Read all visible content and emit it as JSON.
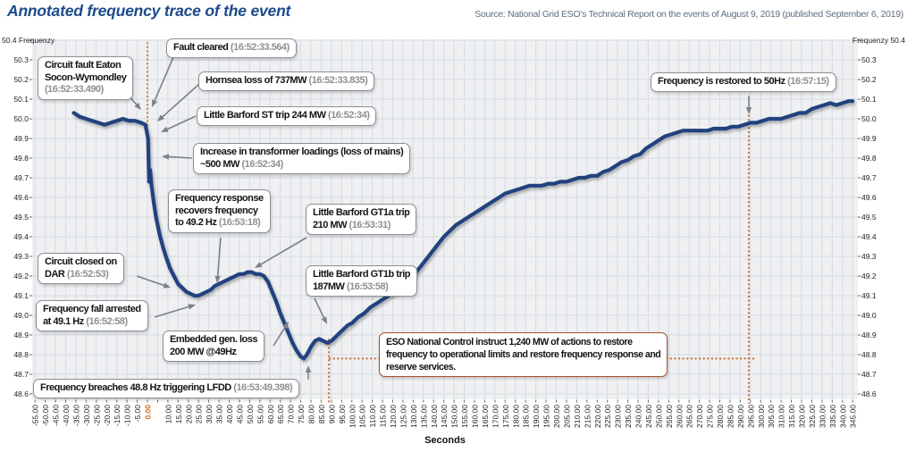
{
  "page": {
    "title": "Annotated frequency trace of the event",
    "source": "Source: National Grid ESO’s Technical Report on the events of August 9, 2019 (published September 6, 2019)"
  },
  "chart_data": {
    "type": "line",
    "title": "Annotated frequency trace of the event",
    "xlabel": "Seconds",
    "ylabel": "Frequenzy",
    "xlim": [
      -55,
      345
    ],
    "ylim": [
      48.6,
      50.4
    ],
    "x_tick_step": 5,
    "x_missing_tick_labels": [
      5
    ],
    "x_highlight_tick": 0,
    "y_tick_step": 0.1,
    "grid": true,
    "colors": {
      "trace": "#20427f",
      "grid": "#d8dbe0",
      "plot_bg": "#eef0f2",
      "arrow": "#7d8187",
      "event_line": "#c8813f",
      "action_line": "#c96b2c",
      "x_highlight": "#cf6a1f",
      "tick_text": "#222222"
    },
    "series": [
      {
        "name": "frequency",
        "color": "#20427f",
        "points": [
          [
            -36,
            50.03
          ],
          [
            -33,
            50.01
          ],
          [
            -30,
            50.0
          ],
          [
            -27,
            49.99
          ],
          [
            -24,
            49.98
          ],
          [
            -21,
            49.97
          ],
          [
            -18,
            49.98
          ],
          [
            -15,
            49.99
          ],
          [
            -12,
            50.0
          ],
          [
            -9,
            49.99
          ],
          [
            -6,
            49.99
          ],
          [
            -3,
            49.98
          ],
          [
            -1,
            49.97
          ],
          [
            0.3,
            49.9
          ],
          [
            0.8,
            49.68
          ],
          [
            1.3,
            49.74
          ],
          [
            2,
            49.66
          ],
          [
            3,
            49.58
          ],
          [
            4,
            49.51
          ],
          [
            5,
            49.46
          ],
          [
            6,
            49.41
          ],
          [
            7.5,
            49.35
          ],
          [
            9,
            49.3
          ],
          [
            11,
            49.24
          ],
          [
            13,
            49.2
          ],
          [
            15,
            49.16
          ],
          [
            17,
            49.14
          ],
          [
            19,
            49.12
          ],
          [
            21,
            49.11
          ],
          [
            23,
            49.1
          ],
          [
            25,
            49.1
          ],
          [
            27,
            49.11
          ],
          [
            29,
            49.12
          ],
          [
            31,
            49.13
          ],
          [
            33,
            49.15
          ],
          [
            35,
            49.16
          ],
          [
            37,
            49.17
          ],
          [
            39,
            49.18
          ],
          [
            41,
            49.19
          ],
          [
            43,
            49.2
          ],
          [
            45,
            49.21
          ],
          [
            47,
            49.21
          ],
          [
            49,
            49.22
          ],
          [
            51,
            49.22
          ],
          [
            53,
            49.21
          ],
          [
            55,
            49.21
          ],
          [
            57,
            49.2
          ],
          [
            59,
            49.17
          ],
          [
            61,
            49.12
          ],
          [
            63,
            49.07
          ],
          [
            65,
            49.01
          ],
          [
            67,
            48.96
          ],
          [
            69,
            48.91
          ],
          [
            71,
            48.86
          ],
          [
            73,
            48.82
          ],
          [
            75,
            48.79
          ],
          [
            76.5,
            48.78
          ],
          [
            78,
            48.8
          ],
          [
            80,
            48.84
          ],
          [
            82,
            48.87
          ],
          [
            84,
            48.88
          ],
          [
            86,
            48.87
          ],
          [
            88,
            48.86
          ],
          [
            90,
            48.87
          ],
          [
            92,
            48.89
          ],
          [
            94,
            48.91
          ],
          [
            96,
            48.93
          ],
          [
            98,
            48.95
          ],
          [
            100,
            48.96
          ],
          [
            103,
            48.99
          ],
          [
            106,
            49.01
          ],
          [
            109,
            49.04
          ],
          [
            112,
            49.06
          ],
          [
            115,
            49.08
          ],
          [
            118,
            49.1
          ],
          [
            121,
            49.12
          ],
          [
            124,
            49.14
          ],
          [
            127,
            49.17
          ],
          [
            130,
            49.2
          ],
          [
            133,
            49.24
          ],
          [
            136,
            49.28
          ],
          [
            139,
            49.32
          ],
          [
            142,
            49.36
          ],
          [
            145,
            49.4
          ],
          [
            148,
            49.43
          ],
          [
            151,
            49.46
          ],
          [
            154,
            49.48
          ],
          [
            157,
            49.5
          ],
          [
            160,
            49.52
          ],
          [
            163,
            49.54
          ],
          [
            166,
            49.56
          ],
          [
            169,
            49.58
          ],
          [
            172,
            49.6
          ],
          [
            175,
            49.62
          ],
          [
            178,
            49.63
          ],
          [
            181,
            49.64
          ],
          [
            184,
            49.65
          ],
          [
            187,
            49.66
          ],
          [
            190,
            49.66
          ],
          [
            193,
            49.66
          ],
          [
            196,
            49.67
          ],
          [
            199,
            49.67
          ],
          [
            202,
            49.68
          ],
          [
            205,
            49.68
          ],
          [
            208,
            49.69
          ],
          [
            211,
            49.7
          ],
          [
            214,
            49.7
          ],
          [
            217,
            49.71
          ],
          [
            220,
            49.71
          ],
          [
            223,
            49.73
          ],
          [
            226,
            49.74
          ],
          [
            229,
            49.76
          ],
          [
            232,
            49.78
          ],
          [
            235,
            49.79
          ],
          [
            238,
            49.81
          ],
          [
            241,
            49.82
          ],
          [
            244,
            49.85
          ],
          [
            247,
            49.87
          ],
          [
            250,
            49.89
          ],
          [
            253,
            49.91
          ],
          [
            256,
            49.92
          ],
          [
            259,
            49.93
          ],
          [
            262,
            49.94
          ],
          [
            265,
            49.94
          ],
          [
            268,
            49.94
          ],
          [
            271,
            49.94
          ],
          [
            274,
            49.94
          ],
          [
            277,
            49.95
          ],
          [
            280,
            49.95
          ],
          [
            283,
            49.95
          ],
          [
            286,
            49.96
          ],
          [
            289,
            49.96
          ],
          [
            292,
            49.97
          ],
          [
            295,
            49.98
          ],
          [
            298,
            49.98
          ],
          [
            301,
            49.99
          ],
          [
            304,
            50.0
          ],
          [
            307,
            50.0
          ],
          [
            310,
            50.0
          ],
          [
            313,
            50.01
          ],
          [
            316,
            50.02
          ],
          [
            319,
            50.03
          ],
          [
            322,
            50.03
          ],
          [
            325,
            50.05
          ],
          [
            328,
            50.06
          ],
          [
            331,
            50.07
          ],
          [
            334,
            50.08
          ],
          [
            337,
            50.07
          ],
          [
            340,
            50.08
          ],
          [
            343,
            50.09
          ],
          [
            345,
            50.09
          ]
        ]
      }
    ],
    "event_lines": [
      {
        "id": "event-start",
        "orient": "v",
        "t": 0,
        "hz_from": 50.39,
        "hz_to": 49.96,
        "color": "#c8813f"
      },
      {
        "id": "actions-start",
        "orient": "v",
        "t": 88.8,
        "hz_from": 48.88,
        "hz_to": 48.55,
        "color": "#c96b2c"
      },
      {
        "id": "actions-span",
        "orient": "h",
        "hz": 48.78,
        "t_from": 88.8,
        "t_to": 297,
        "color": "#c96b2c"
      },
      {
        "id": "actions-end",
        "orient": "v",
        "t": 294.2,
        "hz_from": 50.02,
        "hz_to": 48.55,
        "color": "#c96b2c"
      }
    ],
    "annotations": [
      {
        "id": "circuit-fault",
        "lines": [
          "Circuit fault Eaton",
          "Socon-Wymondley"
        ],
        "time": "(16:52:33.490)",
        "time_own_line": true,
        "x": 42,
        "y": 63,
        "kind": "gray",
        "arrows": [
          [
            143,
            106,
            158,
            123
          ]
        ]
      },
      {
        "id": "fault-cleared",
        "lines": [
          "Fault cleared"
        ],
        "time": "(16:52:33.564)",
        "time_own_line": false,
        "x": 186,
        "y": 43,
        "kind": "gray",
        "arrows": [
          [
            194,
            64,
            170,
            120
          ]
        ]
      },
      {
        "id": "hornsea-loss",
        "lines": [
          "Hornsea loss of 737MW"
        ],
        "time": "(16:52:33.835)",
        "time_own_line": false,
        "x": 222,
        "y": 80,
        "kind": "gray",
        "arrows": [
          [
            223,
            94,
            176,
            136
          ]
        ]
      },
      {
        "id": "little-barford-st-trip",
        "lines": [
          "Little Barford ST trip 244 MW"
        ],
        "time": "(16:52:34)",
        "time_own_line": false,
        "x": 220,
        "y": 119,
        "kind": "gray",
        "arrows": [
          [
            219,
            130,
            180,
            148
          ]
        ]
      },
      {
        "id": "transformer-loadings",
        "lines": [
          "Increase in transformer loadings (loss of mains)",
          "~500 MW"
        ],
        "time": "(16:52:34)",
        "time_own_line": false,
        "x": 216,
        "y": 160,
        "kind": "gray",
        "arrows": [
          [
            215,
            177,
            181,
            175
          ]
        ]
      },
      {
        "id": "frequency-response",
        "lines": [
          "Frequency response",
          "recovers frequency",
          "to 49.2 Hz"
        ],
        "time": "(16:53:18)",
        "time_own_line": false,
        "x": 188,
        "y": 212,
        "kind": "gray",
        "arrows": [
          [
            247,
            266,
            243,
            317
          ]
        ]
      },
      {
        "id": "little-barford-gt1a-trip",
        "lines": [
          "Little Barford GT1a trip",
          "210 MW"
        ],
        "time": "(16:53:31)",
        "time_own_line": false,
        "x": 342,
        "y": 228,
        "kind": "gray",
        "arrows": [
          [
            343,
            266,
            285,
            300
          ]
        ]
      },
      {
        "id": "little-barford-gt1b-trip",
        "lines": [
          "Little Barford GT1b trip",
          "187MW"
        ],
        "time": "(16:53:58)",
        "time_own_line": false,
        "x": 342,
        "y": 297,
        "kind": "gray",
        "arrows": [
          [
            352,
            334,
            366,
            363
          ]
        ]
      },
      {
        "id": "circuit-closed-dar",
        "lines": [
          "Circuit closed on",
          "DAR"
        ],
        "time": "(16:52:53)",
        "time_own_line": false,
        "x": 42,
        "y": 283,
        "kind": "gray",
        "arrows": [
          [
            153,
            309,
            191,
            322
          ]
        ]
      },
      {
        "id": "frequency-fall-arrested",
        "lines": [
          "Frequency fall arrested",
          "at 49.1 Hz"
        ],
        "time": "(16:52:58)",
        "time_own_line": false,
        "x": 40,
        "y": 336,
        "kind": "gray",
        "arrows": [
          [
            173,
            355,
            219,
            341
          ]
        ]
      },
      {
        "id": "embedded-gen-loss",
        "lines": [
          "Embedded gen. loss",
          "200 MW @49Hz"
        ],
        "time": "",
        "time_own_line": false,
        "x": 182,
        "y": 370,
        "kind": "gray",
        "arrows": [
          [
            306,
            387,
            323,
            360
          ]
        ]
      },
      {
        "id": "lfdd-trigger",
        "lines": [
          "Frequency breaches 48.8 Hz triggering LFDD"
        ],
        "time": "(16:53:49.398)",
        "time_own_line": false,
        "x": 37,
        "y": 424,
        "kind": "gray",
        "arrows": [
          [
            345,
            425,
            345,
            409
          ]
        ]
      },
      {
        "id": "frequency-restored",
        "lines": [
          "Frequency is restored to 50Hz"
        ],
        "time": "(16:57:15)",
        "time_own_line": false,
        "x": 728,
        "y": 81,
        "kind": "gray",
        "arrows": [
          [
            838,
            107,
            838,
            128
          ]
        ]
      },
      {
        "id": "eso-actions",
        "lines": [
          "ESO National Control instruct 1,240 MW of actions to restore",
          "frequency to operational limits and restore frequency response and",
          "reserve services."
        ],
        "time": "",
        "time_own_line": false,
        "x": 424,
        "y": 372,
        "kind": "orange",
        "arrows": []
      }
    ]
  }
}
